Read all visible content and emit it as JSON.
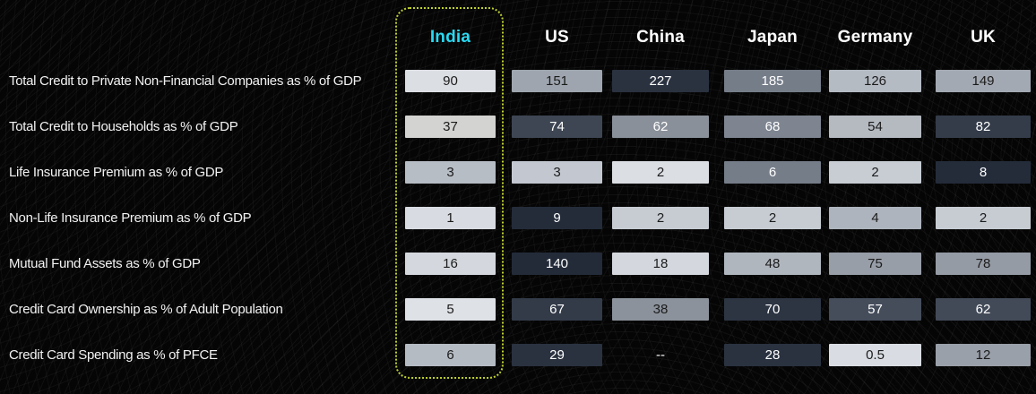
{
  "highlight": {
    "country": "India",
    "border_color": "#bed030",
    "header_color": "#2ad9f2"
  },
  "countries": [
    {
      "label": "India",
      "color": "#2ad9f2"
    },
    {
      "label": "US",
      "color": "#ffffff"
    },
    {
      "label": "China",
      "color": "#ffffff"
    },
    {
      "label": "Japan",
      "color": "#ffffff"
    },
    {
      "label": "Germany",
      "color": "#ffffff"
    },
    {
      "label": "UK",
      "color": "#ffffff"
    }
  ],
  "rows": [
    {
      "label": "Total Credit to Private Non-Financial Companies as % of GDP",
      "cells": [
        {
          "v": "90",
          "bg": "#dbdee3",
          "fg": "#1b1b1b"
        },
        {
          "v": "151",
          "bg": "#9ea5ae",
          "fg": "#1b1b1b"
        },
        {
          "v": "227",
          "bg": "#2a3240",
          "fg": "#ffffff"
        },
        {
          "v": "185",
          "bg": "#757d89",
          "fg": "#ffffff"
        },
        {
          "v": "126",
          "bg": "#b5bbc3",
          "fg": "#1b1b1b"
        },
        {
          "v": "149",
          "bg": "#a3a9b2",
          "fg": "#1b1b1b"
        }
      ]
    },
    {
      "label": "Total Credit to Households as % of GDP",
      "cells": [
        {
          "v": "37",
          "bg": "#d3d3d1",
          "fg": "#1b1b1b"
        },
        {
          "v": "74",
          "bg": "#3e4654",
          "fg": "#ffffff"
        },
        {
          "v": "62",
          "bg": "#8a9099",
          "fg": "#ffffff"
        },
        {
          "v": "68",
          "bg": "#7e8591",
          "fg": "#ffffff"
        },
        {
          "v": "54",
          "bg": "#b5bac1",
          "fg": "#1b1b1b"
        },
        {
          "v": "82",
          "bg": "#343c4a",
          "fg": "#ffffff"
        }
      ]
    },
    {
      "label": "Life Insurance Premium as % of GDP",
      "cells": [
        {
          "v": "3",
          "bg": "#b7bdc5",
          "fg": "#1b1b1b"
        },
        {
          "v": "3",
          "bg": "#c3c8d0",
          "fg": "#1b1b1b"
        },
        {
          "v": "2",
          "bg": "#dbdee3",
          "fg": "#1b1b1b"
        },
        {
          "v": "6",
          "bg": "#757d89",
          "fg": "#ffffff"
        },
        {
          "v": "2",
          "bg": "#c8cdd4",
          "fg": "#1b1b1b"
        },
        {
          "v": "8",
          "bg": "#242c3a",
          "fg": "#ffffff"
        }
      ]
    },
    {
      "label": "Non-Life Insurance Premium as % of GDP",
      "cells": [
        {
          "v": "1",
          "bg": "#d8dbe1",
          "fg": "#1b1b1b"
        },
        {
          "v": "9",
          "bg": "#242c3a",
          "fg": "#ffffff"
        },
        {
          "v": "2",
          "bg": "#c7ccd3",
          "fg": "#1b1b1b"
        },
        {
          "v": "2",
          "bg": "#c7ccd3",
          "fg": "#1b1b1b"
        },
        {
          "v": "4",
          "bg": "#aeb4bd",
          "fg": "#1b1b1b"
        },
        {
          "v": "2",
          "bg": "#c7ccd3",
          "fg": "#1b1b1b"
        }
      ]
    },
    {
      "label": "Mutual Fund Assets as % of GDP",
      "cells": [
        {
          "v": "16",
          "bg": "#d4d8de",
          "fg": "#1b1b1b"
        },
        {
          "v": "140",
          "bg": "#232b39",
          "fg": "#ffffff"
        },
        {
          "v": "18",
          "bg": "#d4d8de",
          "fg": "#1b1b1b"
        },
        {
          "v": "48",
          "bg": "#b0b6be",
          "fg": "#1b1b1b"
        },
        {
          "v": "75",
          "bg": "#989ea8",
          "fg": "#1b1b1b"
        },
        {
          "v": "78",
          "bg": "#959ba5",
          "fg": "#1b1b1b"
        }
      ]
    },
    {
      "label": "Credit Card Ownership as % of Adult Population",
      "cells": [
        {
          "v": "5",
          "bg": "#dee1e6",
          "fg": "#1b1b1b"
        },
        {
          "v": "67",
          "bg": "#333b49",
          "fg": "#ffffff"
        },
        {
          "v": "38",
          "bg": "#8b929b",
          "fg": "#1b1b1b"
        },
        {
          "v": "70",
          "bg": "#2d3543",
          "fg": "#ffffff"
        },
        {
          "v": "57",
          "bg": "#454d5b",
          "fg": "#ffffff"
        },
        {
          "v": "62",
          "bg": "#424a58",
          "fg": "#ffffff"
        }
      ]
    },
    {
      "label": "Credit Card Spending as % of PFCE",
      "cells": [
        {
          "v": "6",
          "bg": "#b5bbc3",
          "fg": "#1b1b1b"
        },
        {
          "v": "29",
          "bg": "#2a3240",
          "fg": "#ffffff"
        },
        {
          "v": "--",
          "bg": "transparent",
          "fg": "#ffffff"
        },
        {
          "v": "28",
          "bg": "#2a3240",
          "fg": "#ffffff"
        },
        {
          "v": "0.5",
          "bg": "#d9dde3",
          "fg": "#1b1b1b"
        },
        {
          "v": "12",
          "bg": "#9aa0a9",
          "fg": "#1b1b1b"
        }
      ]
    }
  ],
  "chart_data": {
    "type": "heatmap",
    "columns": [
      "India",
      "US",
      "China",
      "Japan",
      "Germany",
      "UK"
    ],
    "rows": [
      {
        "metric": "Total Credit to Private Non-Financial Companies as % of GDP",
        "values": [
          90,
          151,
          227,
          185,
          126,
          149
        ]
      },
      {
        "metric": "Total Credit to Households as % of GDP",
        "values": [
          37,
          74,
          62,
          68,
          54,
          82
        ]
      },
      {
        "metric": "Life Insurance Premium as % of GDP",
        "values": [
          3,
          3,
          2,
          6,
          2,
          8
        ]
      },
      {
        "metric": "Non-Life Insurance Premium as % of GDP",
        "values": [
          1,
          9,
          2,
          2,
          4,
          2
        ]
      },
      {
        "metric": "Mutual Fund Assets as % of GDP",
        "values": [
          16,
          140,
          18,
          48,
          75,
          78
        ]
      },
      {
        "metric": "Credit Card Ownership as % of Adult Population",
        "values": [
          5,
          67,
          38,
          70,
          57,
          62
        ]
      },
      {
        "metric": "Credit Card Spending as % of PFCE",
        "values": [
          6,
          29,
          null,
          28,
          0.5,
          12
        ]
      }
    ],
    "missing_marker": "--",
    "highlighted_column": "India",
    "legend": "cell shading: darker = higher value within metric row",
    "layout": {
      "legend_position": "none",
      "grid": false
    }
  }
}
